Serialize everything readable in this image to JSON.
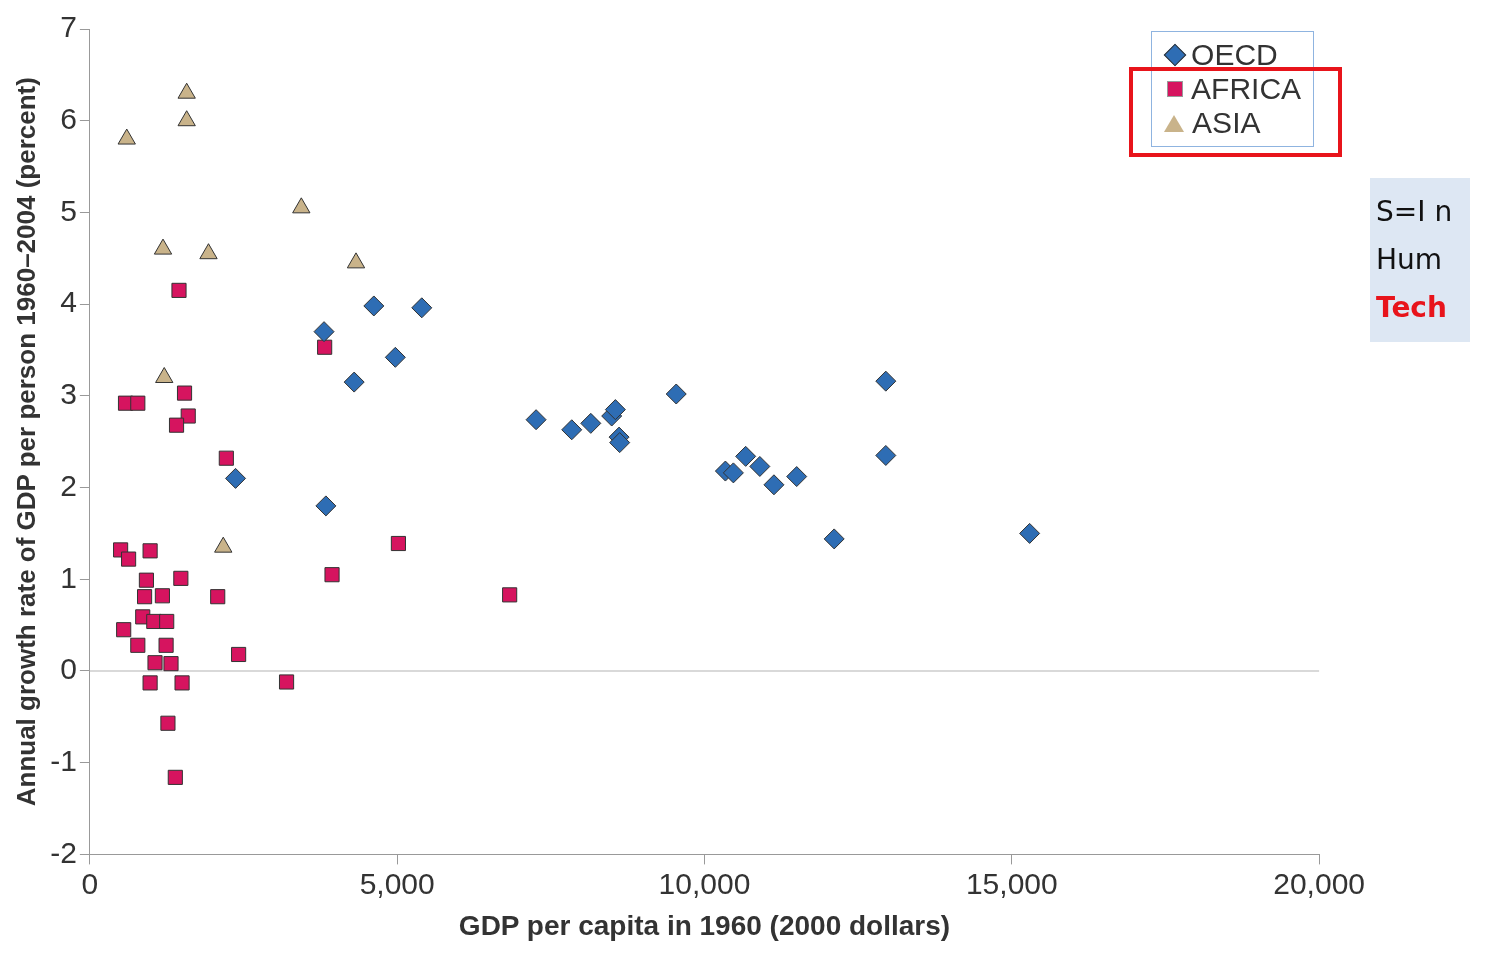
{
  "chart_data": {
    "type": "scatter",
    "xlabel": "GDP per capita in 1960 (2000 dollars)",
    "ylabel": "Annual growth rate of GDP per person 1960–2004 (percent)",
    "xlim": [
      0,
      20000
    ],
    "xticks": [
      0,
      {
        "value": 5000,
        "label": "5,000"
      },
      {
        "value": 10000,
        "label": "10,000"
      },
      {
        "value": 15000,
        "label": "15,000"
      },
      {
        "value": 20000,
        "label": "20,000"
      }
    ],
    "ylim": [
      -2,
      7
    ],
    "yticks": [
      -2,
      -1,
      0,
      1,
      2,
      3,
      4,
      5,
      6,
      7
    ],
    "grid": false,
    "legend": "top right",
    "ref_lines": [
      {
        "axis": "y",
        "value": 0,
        "color": "#cccccc"
      }
    ],
    "annotations": [
      "S=I n",
      "Hum",
      "Tech"
    ],
    "series": [
      {
        "name": "OECD",
        "color": "#2e6db4",
        "marker": "diamond",
        "x": [
          3810,
          4620,
          5400,
          4970,
          4300,
          2370,
          3840,
          7260,
          7840,
          8150,
          8490,
          8550,
          8610,
          8620,
          9540,
          10340,
          10470,
          10670,
          10900,
          11130,
          11500,
          12110,
          12950,
          12950,
          15290
        ],
        "values": [
          3.7,
          3.98,
          3.96,
          3.42,
          3.15,
          2.1,
          1.8,
          2.74,
          2.63,
          2.7,
          2.78,
          2.85,
          2.55,
          2.49,
          3.02,
          2.18,
          2.16,
          2.34,
          2.23,
          2.03,
          2.12,
          1.44,
          3.16,
          2.35,
          1.5
        ]
      },
      {
        "name": "AFRICA",
        "color": "#d6145f",
        "marker": "square",
        "x": [
          1450,
          3820,
          580,
          780,
          1540,
          1600,
          1410,
          2220,
          500,
          630,
          980,
          920,
          1480,
          3940,
          5020,
          6830,
          2080,
          890,
          1180,
          550,
          860,
          1040,
          1250,
          780,
          1240,
          1060,
          1320,
          980,
          1500,
          2420,
          3200,
          1270,
          1390
        ],
        "values": [
          4.15,
          3.53,
          2.92,
          2.92,
          3.03,
          2.78,
          2.68,
          2.32,
          1.32,
          1.22,
          1.31,
          0.99,
          1.01,
          1.05,
          1.39,
          0.83,
          0.81,
          0.81,
          0.82,
          0.45,
          0.59,
          0.54,
          0.54,
          0.28,
          0.28,
          0.09,
          0.08,
          -0.13,
          -0.13,
          0.18,
          -0.12,
          -0.57,
          -1.16
        ]
      },
      {
        "name": "ASIA",
        "color": "#c9b38a",
        "marker": "triangle",
        "x": [
          600,
          1575,
          1575,
          1190,
          1930,
          3440,
          4330,
          1210,
          2170
        ],
        "values": [
          5.8,
          6.3,
          6.0,
          4.6,
          4.55,
          5.05,
          4.45,
          3.2,
          1.35
        ]
      }
    ]
  }
}
